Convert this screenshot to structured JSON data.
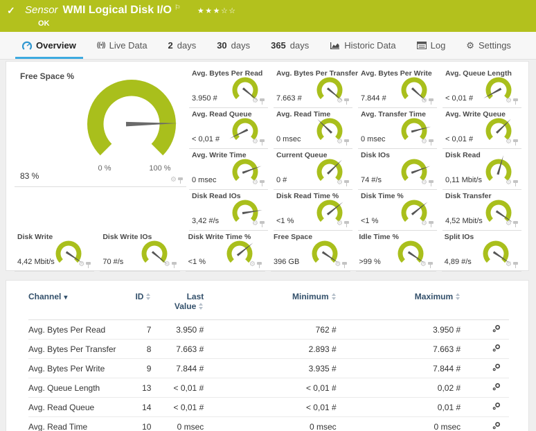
{
  "icons": {
    "check": "✓",
    "flag": "⚐",
    "gear": "⚙",
    "caret_down": "▾",
    "broadcast_text": "((•))"
  },
  "colors": {
    "brand_green": "#b3c11d",
    "gauge_green": "#a9bf1c",
    "tab_active_blue": "#3daae0",
    "table_header_text": "#33506b"
  },
  "header": {
    "kind": "Sensor",
    "title": "WMI Logical Disk I/O",
    "stars": "★★★☆☆",
    "status": "OK"
  },
  "tabs": [
    {
      "id": "overview",
      "icon": "gauge",
      "label": "Overview",
      "active": true
    },
    {
      "id": "live-data",
      "icon": "broadcast",
      "label": "Live Data",
      "active": false
    },
    {
      "id": "2-days",
      "num": "2",
      "label": "days",
      "active": false
    },
    {
      "id": "30-days",
      "num": "30",
      "label": "days",
      "active": false
    },
    {
      "id": "365-days",
      "num": "365",
      "label": "days",
      "active": false
    },
    {
      "id": "historic-data",
      "icon": "chart",
      "label": "Historic Data",
      "active": false
    },
    {
      "id": "log",
      "icon": "log",
      "label": "Log",
      "active": false
    },
    {
      "id": "settings",
      "icon": "gear",
      "label": "Settings",
      "active": false
    }
  ],
  "big_gauge": {
    "title": "Free Space %",
    "value": "83 %",
    "min_label": "0 %",
    "max_label": "100 %",
    "percent": 83
  },
  "gauges": [
    {
      "name": "Avg. Bytes Per Read",
      "value": "3.950 #",
      "percent": 98
    },
    {
      "name": "Avg. Bytes Per Transfer",
      "value": "7.663 #",
      "percent": 98
    },
    {
      "name": "Avg. Bytes Per Write",
      "value": "7.844 #",
      "percent": 99
    },
    {
      "name": "Avg. Queue Length",
      "value": "< 0,01 #",
      "percent": 6
    },
    {
      "name": "Avg. Read Queue",
      "value": "< 0,01 #",
      "percent": 7
    },
    {
      "name": "Avg. Read Time",
      "value": "0 msec",
      "percent": 33
    },
    {
      "name": "Avg. Transfer Time",
      "value": "0 msec",
      "percent": 78
    },
    {
      "name": "Avg. Write Queue",
      "value": "< 0,01 #",
      "percent": 67
    },
    {
      "name": "Avg. Write Time",
      "value": "0 msec",
      "percent": 76
    },
    {
      "name": "Current Queue",
      "value": "0 #",
      "percent": 67
    },
    {
      "name": "Disk IOs",
      "value": "74 #/s",
      "percent": 76
    },
    {
      "name": "Disk Read",
      "value": "0,11 Mbit/s",
      "percent": 56
    },
    {
      "name": "Disk Read IOs",
      "value": "3,42 #/s",
      "percent": 80
    },
    {
      "name": "Disk Read Time %",
      "value": "<1 %",
      "percent": 69
    },
    {
      "name": "Disk Time %",
      "value": "<1 %",
      "percent": 69
    },
    {
      "name": "Disk Transfer",
      "value": "4,52 Mbit/s",
      "percent": 96
    },
    {
      "name": "Disk Write",
      "value": "4,42 Mbit/s",
      "percent": 96
    },
    {
      "name": "Disk Write IOs",
      "value": "70 #/s",
      "percent": 98
    },
    {
      "name": "Disk Write Time %",
      "value": "<1 %",
      "percent": 69
    },
    {
      "name": "Free Space",
      "value": "396 GB",
      "percent": 96
    },
    {
      "name": "Idle Time %",
      "value": ">99 %",
      "percent": 96
    },
    {
      "name": "Split IOs",
      "value": "4,89 #/s",
      "percent": 96
    }
  ],
  "table": {
    "headers": {
      "channel": "Channel",
      "id": "ID",
      "last_line1": "Last",
      "last_line2": "Value",
      "minimum": "Minimum",
      "maximum": "Maximum"
    },
    "rows": [
      {
        "channel": "Avg. Bytes Per Read",
        "id": "7",
        "last": "3.950 #",
        "min": "762 #",
        "max": "3.950 #"
      },
      {
        "channel": "Avg. Bytes Per Transfer",
        "id": "8",
        "last": "7.663 #",
        "min": "2.893 #",
        "max": "7.663 #"
      },
      {
        "channel": "Avg. Bytes Per Write",
        "id": "9",
        "last": "7.844 #",
        "min": "3.935 #",
        "max": "7.844 #"
      },
      {
        "channel": "Avg. Queue Length",
        "id": "13",
        "last": "< 0,01 #",
        "min": "< 0,01 #",
        "max": "0,02 #"
      },
      {
        "channel": "Avg. Read Queue",
        "id": "14",
        "last": "< 0,01 #",
        "min": "< 0,01 #",
        "max": "0,01 #"
      },
      {
        "channel": "Avg. Read Time",
        "id": "10",
        "last": "0 msec",
        "min": "0 msec",
        "max": "0 msec"
      }
    ]
  }
}
